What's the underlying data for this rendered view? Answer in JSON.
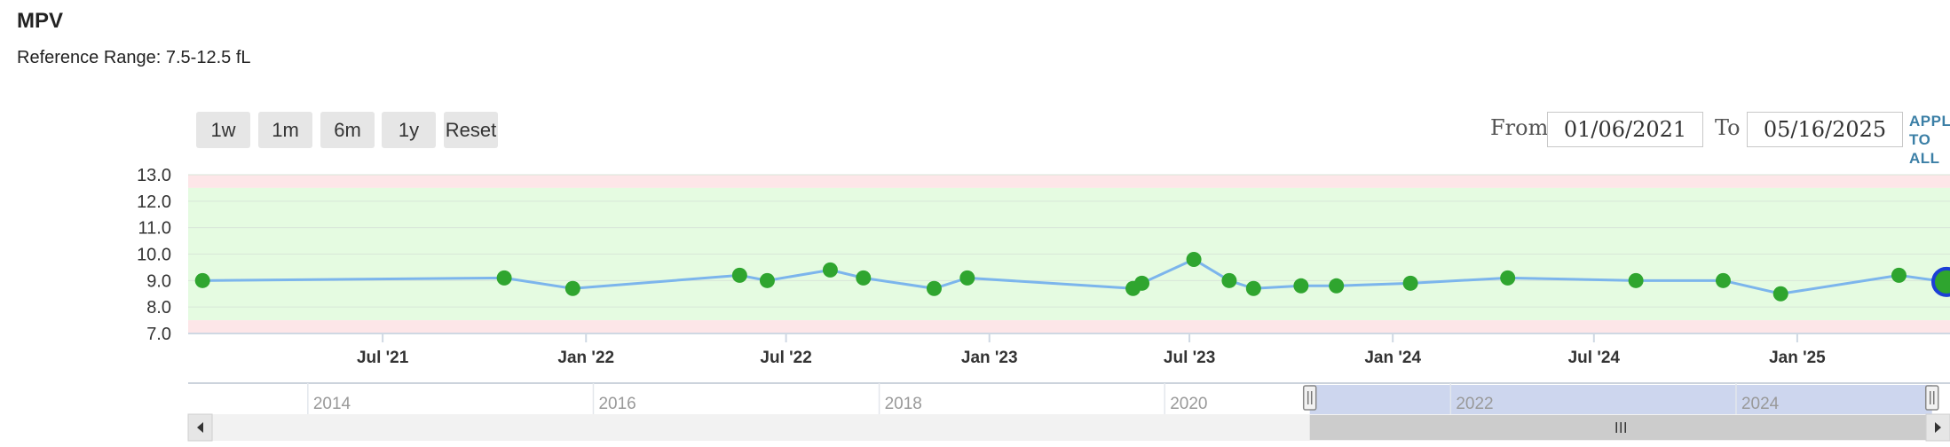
{
  "header": {
    "title": "MPV",
    "reference_range": "Reference Range: 7.5-12.5 fL"
  },
  "range_buttons": [
    {
      "label": "1w"
    },
    {
      "label": "1m"
    },
    {
      "label": "6m"
    },
    {
      "label": "1y"
    },
    {
      "label": "Reset"
    }
  ],
  "date_range": {
    "from_label": "From",
    "from_value": "01/06/2021",
    "to_label": "To",
    "to_value": "05/16/2025",
    "apply_label": "APPLY TO ALL"
  },
  "colors": {
    "line": "#7cb5ec",
    "point": "#2fa52f",
    "normal_band": "#e5fbe1",
    "abnormal_band": "#fde6e8",
    "highlight_ring": "#1c3fd6",
    "navigator_selection": "#cdd6ee"
  },
  "chart_data": {
    "type": "line",
    "x_axis": {
      "type": "datetime",
      "range": [
        "2021-01-06",
        "2025-05-16"
      ],
      "tick_labels": [
        "Jul '21",
        "Jan '22",
        "Jul '22",
        "Jan '23",
        "Jul '23",
        "Jan '24",
        "Jul '24",
        "Jan '25"
      ],
      "tick_dates": [
        "2021-07-01",
        "2022-01-01",
        "2022-07-01",
        "2023-01-01",
        "2023-07-01",
        "2024-01-01",
        "2024-07-01",
        "2025-01-01"
      ]
    },
    "y_axis": {
      "range": [
        7.0,
        13.0
      ],
      "tick_labels": [
        "7.0",
        "8.0",
        "9.0",
        "10.0",
        "11.0",
        "12.0",
        "13.0"
      ],
      "ticks": [
        7,
        8,
        9,
        10,
        11,
        12,
        13
      ]
    },
    "reference_range": {
      "low": 7.5,
      "high": 12.5
    },
    "grid": true,
    "legend": "none",
    "series": [
      {
        "points": [
          {
            "x": "2021-01-19",
            "y": 9.0
          },
          {
            "x": "2021-10-19",
            "y": 9.1
          },
          {
            "x": "2021-12-20",
            "y": 8.7
          },
          {
            "x": "2022-05-20",
            "y": 9.2
          },
          {
            "x": "2022-06-14",
            "y": 9.0
          },
          {
            "x": "2022-08-10",
            "y": 9.4
          },
          {
            "x": "2022-09-09",
            "y": 9.1
          },
          {
            "x": "2022-11-12",
            "y": 8.7
          },
          {
            "x": "2022-12-12",
            "y": 9.1
          },
          {
            "x": "2023-05-11",
            "y": 8.7
          },
          {
            "x": "2023-05-19",
            "y": 8.9
          },
          {
            "x": "2023-07-05",
            "y": 9.8
          },
          {
            "x": "2023-08-06",
            "y": 9.0
          },
          {
            "x": "2023-08-28",
            "y": 8.7
          },
          {
            "x": "2023-10-10",
            "y": 8.8
          },
          {
            "x": "2023-11-11",
            "y": 8.8
          },
          {
            "x": "2024-01-17",
            "y": 8.9
          },
          {
            "x": "2024-04-14",
            "y": 9.1
          },
          {
            "x": "2024-08-08",
            "y": 9.0
          },
          {
            "x": "2024-10-26",
            "y": 9.0
          },
          {
            "x": "2024-12-17",
            "y": 8.5
          },
          {
            "x": "2025-04-03",
            "y": 9.2
          },
          {
            "x": "2025-05-16",
            "y": 8.95
          }
        ]
      }
    ]
  },
  "navigator": {
    "year_labels": [
      "2014",
      "2016",
      "2018",
      "2020",
      "2022",
      "2024"
    ],
    "year_dates": [
      "2014-01-01",
      "2016-01-01",
      "2018-01-01",
      "2020-01-01",
      "2022-01-01",
      "2024-01-01"
    ],
    "range": [
      "2013-03-01",
      "2025-07-01"
    ],
    "selection": [
      "2021-01-06",
      "2025-05-16"
    ],
    "scroll_left_icon": "triangle-left-icon",
    "scroll_right_icon": "triangle-right-icon",
    "grip_icon": "grip-lines-icon"
  }
}
